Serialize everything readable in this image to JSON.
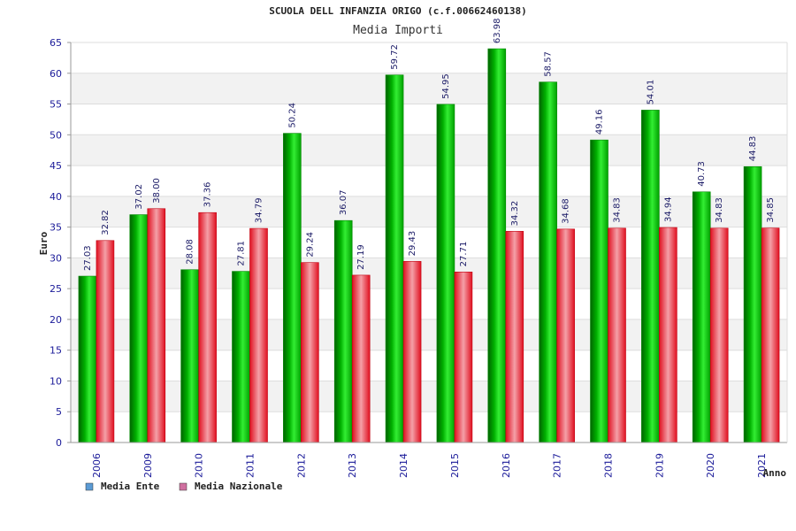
{
  "chart_data": {
    "type": "bar",
    "title": "SCUOLA DELL INFANZIA ORIGO (c.f.00662460138)",
    "subtitle": "Media Importi",
    "xlabel": "Anno",
    "ylabel": "Euro",
    "ylim": [
      0,
      65
    ],
    "yticks": [
      0,
      5,
      10,
      15,
      20,
      25,
      30,
      35,
      40,
      45,
      50,
      55,
      60,
      65
    ],
    "categories": [
      "2006",
      "2009",
      "2010",
      "2011",
      "2012",
      "2013",
      "2014",
      "2015",
      "2016",
      "2017",
      "2018",
      "2019",
      "2020",
      "2021"
    ],
    "series": [
      {
        "name": "Media Ente",
        "color": "#00c000",
        "legend_color": "#5b9bd5",
        "values": [
          27.03,
          37.02,
          28.08,
          27.81,
          50.24,
          36.07,
          59.72,
          54.95,
          63.98,
          58.57,
          49.16,
          54.01,
          40.73,
          44.83
        ],
        "labels": [
          "27.03",
          "37.02",
          "28.08",
          "27.81",
          "50.24",
          "36.07",
          "59.72",
          "54.95",
          "63.98",
          "58.57",
          "49.16",
          "54.01",
          "40.73",
          "44.83"
        ]
      },
      {
        "name": "Media Nazionale",
        "color": "#e8202a",
        "legend_color": "#d070a0",
        "values": [
          32.82,
          38.0,
          37.36,
          34.79,
          29.24,
          27.19,
          29.43,
          27.71,
          34.32,
          34.68,
          34.83,
          34.94,
          34.83,
          34.85
        ],
        "labels": [
          "32.82",
          "38.00",
          "37.36",
          "34.79",
          "29.24",
          "27.19",
          "29.43",
          "27.71",
          "34.32",
          "34.68",
          "34.83",
          "34.94",
          "34.83",
          "34.85"
        ]
      }
    ],
    "grid": true,
    "legend_position": "bottom-left"
  }
}
